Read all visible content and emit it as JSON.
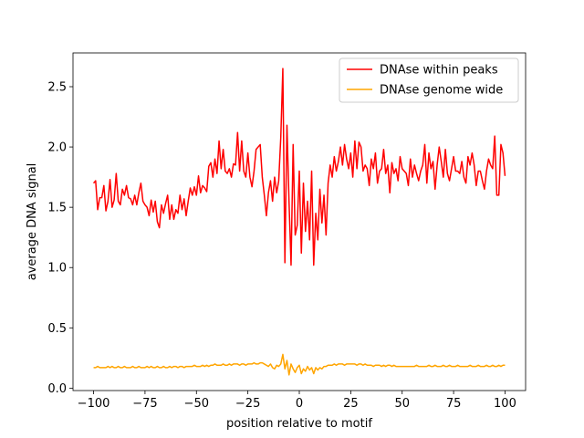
{
  "chart_data": {
    "type": "line",
    "xlabel": "position relative to motif",
    "ylabel": "average DNA signal",
    "xlim": [
      -110,
      110
    ],
    "ylim": [
      -0.02,
      2.78
    ],
    "xticks": [
      {
        "value": -100,
        "label": "−100"
      },
      {
        "value": -75,
        "label": "−75"
      },
      {
        "value": -50,
        "label": "−50"
      },
      {
        "value": -25,
        "label": "−25"
      },
      0,
      25,
      50,
      75,
      100
    ],
    "yticks": [
      {
        "value": 0,
        "label": "0.0"
      },
      0.5,
      {
        "value": 1,
        "label": "1.0"
      },
      1.5,
      {
        "value": 2,
        "label": "2.0"
      },
      2.5
    ],
    "legend": "upper right",
    "x": [
      -100,
      -99,
      -98,
      -97,
      -96,
      -95,
      -94,
      -93,
      -92,
      -91,
      -90,
      -89,
      -88,
      -87,
      -86,
      -85,
      -84,
      -83,
      -82,
      -81,
      -80,
      -79,
      -78,
      -77,
      -76,
      -75,
      -74,
      -73,
      -72,
      -71,
      -70,
      -69,
      -68,
      -67,
      -66,
      -65,
      -64,
      -63,
      -62,
      -61,
      -60,
      -59,
      -58,
      -57,
      -56,
      -55,
      -54,
      -53,
      -52,
      -51,
      -50,
      -49,
      -48,
      -47,
      -46,
      -45,
      -44,
      -43,
      -42,
      -41,
      -40,
      -39,
      -38,
      -37,
      -36,
      -35,
      -34,
      -33,
      -32,
      -31,
      -30,
      -29,
      -28,
      -27,
      -26,
      -25,
      -24,
      -23,
      -22,
      -21,
      -20,
      -19,
      -18,
      -17,
      -16,
      -15,
      -14,
      -13,
      -12,
      -11,
      -10,
      -9,
      -8,
      -7,
      -6,
      -5,
      -4,
      -3,
      -2,
      -1,
      0,
      1,
      2,
      3,
      4,
      5,
      6,
      7,
      8,
      9,
      10,
      11,
      12,
      13,
      14,
      15,
      16,
      17,
      18,
      19,
      20,
      21,
      22,
      23,
      24,
      25,
      26,
      27,
      28,
      29,
      30,
      31,
      32,
      33,
      34,
      35,
      36,
      37,
      38,
      39,
      40,
      41,
      42,
      43,
      44,
      45,
      46,
      47,
      48,
      49,
      50,
      51,
      52,
      53,
      54,
      55,
      56,
      57,
      58,
      59,
      60,
      61,
      62,
      63,
      64,
      65,
      66,
      67,
      68,
      69,
      70,
      71,
      72,
      73,
      74,
      75,
      76,
      77,
      78,
      79,
      80,
      81,
      82,
      83,
      84,
      85,
      86,
      87,
      88,
      89,
      90,
      91,
      92,
      93,
      94,
      95,
      96,
      97,
      98,
      99,
      100
    ],
    "series": [
      {
        "name": "DNAse within peaks",
        "color": "#ff0000",
        "values": [
          1.7,
          1.72,
          1.48,
          1.58,
          1.58,
          1.68,
          1.47,
          1.55,
          1.73,
          1.5,
          1.56,
          1.78,
          1.55,
          1.52,
          1.65,
          1.6,
          1.68,
          1.58,
          1.57,
          1.52,
          1.6,
          1.52,
          1.62,
          1.7,
          1.55,
          1.52,
          1.5,
          1.43,
          1.56,
          1.46,
          1.55,
          1.38,
          1.33,
          1.52,
          1.45,
          1.53,
          1.6,
          1.4,
          1.52,
          1.4,
          1.48,
          1.45,
          1.6,
          1.48,
          1.57,
          1.43,
          1.55,
          1.66,
          1.6,
          1.67,
          1.6,
          1.76,
          1.62,
          1.68,
          1.66,
          1.63,
          1.84,
          1.87,
          1.75,
          1.9,
          1.78,
          2.05,
          1.82,
          1.98,
          1.8,
          1.78,
          1.82,
          1.75,
          1.86,
          1.85,
          2.12,
          1.8,
          2.05,
          1.8,
          1.75,
          1.95,
          1.75,
          1.67,
          1.8,
          1.98,
          2.0,
          2.02,
          1.75,
          1.6,
          1.43,
          1.62,
          1.72,
          1.55,
          1.75,
          1.62,
          1.72,
          2.08,
          2.65,
          1.04,
          2.18,
          1.55,
          1.02,
          2.02,
          1.27,
          1.35,
          1.8,
          1.12,
          1.7,
          1.3,
          1.55,
          1.23,
          1.8,
          1.02,
          1.45,
          1.23,
          1.65,
          1.37,
          1.6,
          1.27,
          1.7,
          1.85,
          1.75,
          1.92,
          1.8,
          1.88,
          2.0,
          1.85,
          2.02,
          1.9,
          1.82,
          1.95,
          1.75,
          2.05,
          1.82,
          2.04,
          2.0,
          1.8,
          1.85,
          1.82,
          1.68,
          1.9,
          1.82,
          1.95,
          1.7,
          1.8,
          1.82,
          1.98,
          1.78,
          1.85,
          1.62,
          1.87,
          1.78,
          1.82,
          1.72,
          1.92,
          1.82,
          1.8,
          1.78,
          1.68,
          1.9,
          1.75,
          1.85,
          1.78,
          1.72,
          1.8,
          1.85,
          2.02,
          1.7,
          1.95,
          1.82,
          1.88,
          1.65,
          1.85,
          2.0,
          1.88,
          1.75,
          1.98,
          1.78,
          1.72,
          1.82,
          1.92,
          1.8,
          1.8,
          1.78,
          1.88,
          1.75,
          1.7,
          1.92,
          1.85,
          1.95,
          1.85,
          1.68,
          1.8,
          1.8,
          1.72,
          1.65,
          1.8,
          1.9,
          1.85,
          1.82,
          2.09,
          1.6,
          1.6,
          2.02,
          1.95,
          1.76
        ]
      },
      {
        "name": "DNAse genome wide",
        "color": "#ffa500",
        "values": [
          0.17,
          0.17,
          0.18,
          0.17,
          0.17,
          0.17,
          0.17,
          0.18,
          0.17,
          0.18,
          0.17,
          0.17,
          0.18,
          0.17,
          0.17,
          0.18,
          0.17,
          0.17,
          0.17,
          0.18,
          0.17,
          0.17,
          0.18,
          0.17,
          0.17,
          0.17,
          0.18,
          0.17,
          0.18,
          0.17,
          0.17,
          0.18,
          0.17,
          0.17,
          0.18,
          0.17,
          0.17,
          0.18,
          0.17,
          0.18,
          0.18,
          0.17,
          0.18,
          0.18,
          0.17,
          0.18,
          0.18,
          0.18,
          0.18,
          0.19,
          0.18,
          0.18,
          0.18,
          0.19,
          0.18,
          0.19,
          0.18,
          0.19,
          0.19,
          0.2,
          0.19,
          0.19,
          0.19,
          0.2,
          0.19,
          0.19,
          0.2,
          0.19,
          0.2,
          0.2,
          0.2,
          0.19,
          0.2,
          0.2,
          0.19,
          0.2,
          0.2,
          0.2,
          0.21,
          0.2,
          0.2,
          0.21,
          0.21,
          0.2,
          0.19,
          0.18,
          0.2,
          0.17,
          0.16,
          0.19,
          0.18,
          0.2,
          0.28,
          0.16,
          0.23,
          0.11,
          0.2,
          0.16,
          0.13,
          0.17,
          0.19,
          0.12,
          0.16,
          0.14,
          0.18,
          0.15,
          0.17,
          0.12,
          0.17,
          0.15,
          0.17,
          0.16,
          0.18,
          0.18,
          0.19,
          0.19,
          0.19,
          0.2,
          0.19,
          0.2,
          0.2,
          0.2,
          0.19,
          0.2,
          0.2,
          0.2,
          0.2,
          0.2,
          0.19,
          0.2,
          0.2,
          0.19,
          0.2,
          0.19,
          0.19,
          0.19,
          0.18,
          0.19,
          0.19,
          0.19,
          0.18,
          0.19,
          0.18,
          0.19,
          0.19,
          0.18,
          0.19,
          0.18,
          0.18,
          0.18,
          0.18,
          0.18,
          0.18,
          0.18,
          0.18,
          0.18,
          0.18,
          0.19,
          0.18,
          0.18,
          0.18,
          0.18,
          0.18,
          0.19,
          0.18,
          0.18,
          0.19,
          0.18,
          0.18,
          0.18,
          0.19,
          0.18,
          0.18,
          0.19,
          0.18,
          0.18,
          0.18,
          0.19,
          0.18,
          0.18,
          0.18,
          0.18,
          0.18,
          0.19,
          0.18,
          0.18,
          0.18,
          0.19,
          0.18,
          0.18,
          0.18,
          0.19,
          0.18,
          0.18,
          0.19,
          0.18,
          0.18,
          0.19,
          0.18,
          0.19,
          0.19
        ]
      }
    ]
  }
}
